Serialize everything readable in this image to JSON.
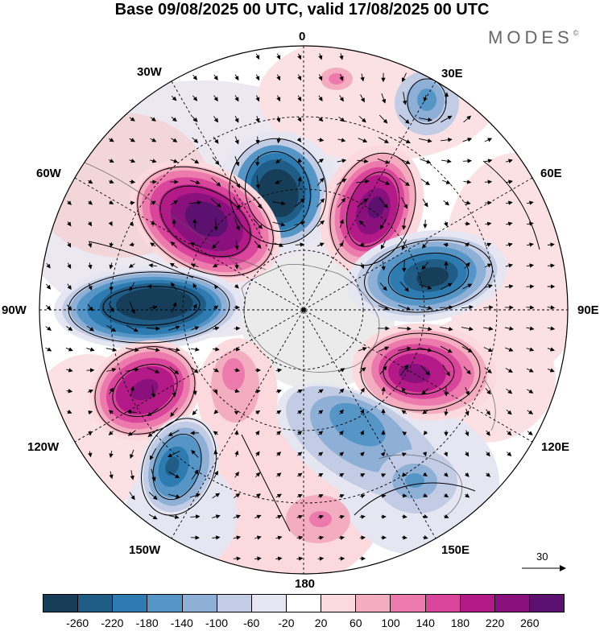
{
  "title": "Base 09/08/2025 00 UTC, valid 17/08/2025 00 UTC",
  "brand": "MODES",
  "brand_mark": "©",
  "longitude_labels": {
    "lon_0": "0",
    "lon_30e": "30E",
    "lon_60e": "60E",
    "lon_90e": "90E",
    "lon_120e": "120E",
    "lon_150e": "150E",
    "lon_180": "180",
    "lon_150w": "150W",
    "lon_120w": "120W",
    "lon_90w": "90W",
    "lon_60w": "60W",
    "lon_30w": "30W"
  },
  "reference_vector_label": "30",
  "colorbar": {
    "ticks": [
      "-260",
      "-220",
      "-180",
      "-140",
      "-100",
      "-60",
      "-20",
      "20",
      "60",
      "100",
      "140",
      "180",
      "220",
      "260"
    ],
    "colors": [
      "#173e59",
      "#1f5c86",
      "#2d7bb0",
      "#5596c6",
      "#8fb0d6",
      "#c2cde5",
      "#e6e6f2",
      "#ffffff",
      "#fbd9dc",
      "#f4adc0",
      "#ec7aac",
      "#d9459b",
      "#b31a88",
      "#8a117d",
      "#5c1070"
    ]
  },
  "icons": {
    "north_arrow": "vector-arrow"
  }
}
